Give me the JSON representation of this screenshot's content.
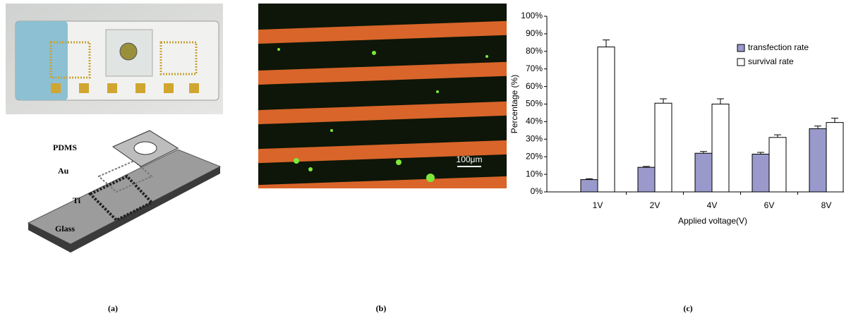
{
  "panels": [
    {
      "label": "(a)",
      "labels": [
        "PDMS",
        "Au",
        "Ti",
        "Glass"
      ]
    },
    {
      "label": "(b)",
      "scale_bar": "100μm"
    },
    {
      "label": "(c)"
    }
  ],
  "chart_data": {
    "type": "bar",
    "categories": [
      "1V",
      "2V",
      "4V",
      "6V",
      "8V"
    ],
    "x_label": "Applied voltage(V)",
    "y_label": "Percentage (%)",
    "series": [
      {
        "name": "transfection rate",
        "color": "#9999cc",
        "values": [
          7,
          14,
          22,
          21.5,
          36
        ],
        "errors": [
          0.5,
          0.5,
          1,
          1,
          1.5
        ]
      },
      {
        "name": "survival rate",
        "color": "#ffffff",
        "values": [
          82.5,
          50.5,
          50,
          31,
          39.5
        ],
        "errors": [
          4,
          2.5,
          3,
          1.5,
          2.5
        ]
      }
    ],
    "ylim": [
      0,
      100
    ],
    "yticks": [
      {
        "value": 0,
        "label": "0%"
      },
      {
        "value": 10,
        "label": "10%"
      },
      {
        "value": 20,
        "label": "20%"
      },
      {
        "value": 30,
        "label": "30%"
      },
      {
        "value": 40,
        "label": "40%"
      },
      {
        "value": 50,
        "label": "50%"
      },
      {
        "value": 60,
        "label": "60%"
      },
      {
        "value": 70,
        "label": "70%"
      },
      {
        "value": 80,
        "label": "80%"
      },
      {
        "value": 90,
        "label": "90%"
      },
      {
        "value": 100,
        "label": "100%"
      }
    ],
    "legend": "top-right"
  }
}
